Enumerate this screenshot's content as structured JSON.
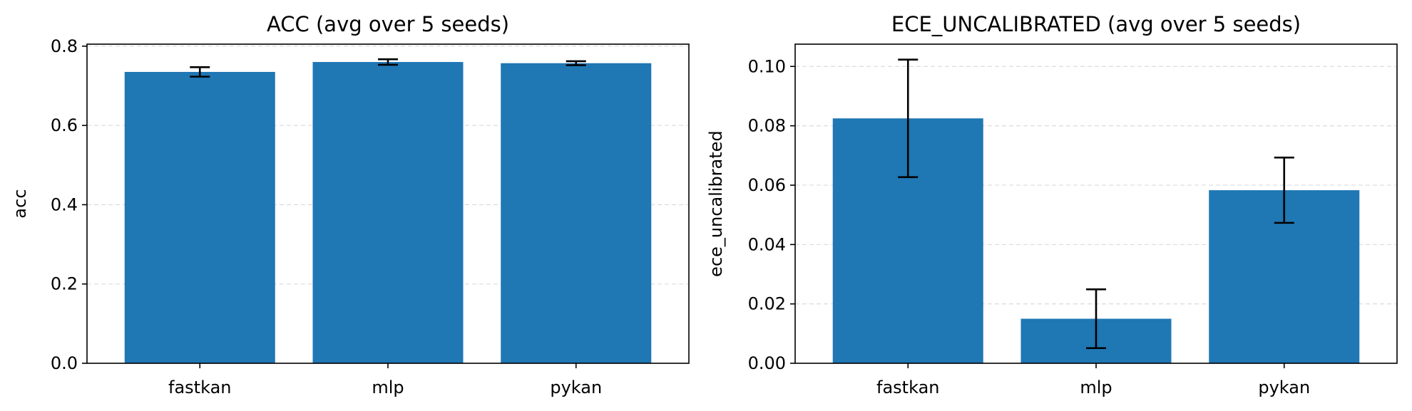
{
  "chart_data": [
    {
      "type": "bar",
      "title": "ACC (avg over 5 seeds)",
      "xlabel": "",
      "ylabel": "acc",
      "categories": [
        "fastkan",
        "mlp",
        "pykan"
      ],
      "values": [
        0.735,
        0.76,
        0.757
      ],
      "errors": [
        0.012,
        0.007,
        0.005
      ],
      "ylim": [
        0,
        0.805
      ],
      "yticks": [
        0.0,
        0.2,
        0.4,
        0.6,
        0.8
      ],
      "ytick_labels": [
        "0.0",
        "0.2",
        "0.4",
        "0.6",
        "0.8"
      ],
      "grid": "y-dashed",
      "legend": "none",
      "bar_color": "#1f77b4"
    },
    {
      "type": "bar",
      "title": "ECE_UNCALIBRATED (avg over 5 seeds)",
      "xlabel": "",
      "ylabel": "ece_uncalibrated",
      "categories": [
        "fastkan",
        "mlp",
        "pykan"
      ],
      "values": [
        0.0825,
        0.015,
        0.0583
      ],
      "errors": [
        0.0198,
        0.0099,
        0.011
      ],
      "ylim": [
        0,
        0.1075
      ],
      "yticks": [
        0.0,
        0.02,
        0.04,
        0.06,
        0.08,
        0.1
      ],
      "ytick_labels": [
        "0.00",
        "0.02",
        "0.04",
        "0.06",
        "0.08",
        "0.10"
      ],
      "grid": "y-dashed",
      "legend": "none",
      "bar_color": "#1f77b4"
    }
  ]
}
